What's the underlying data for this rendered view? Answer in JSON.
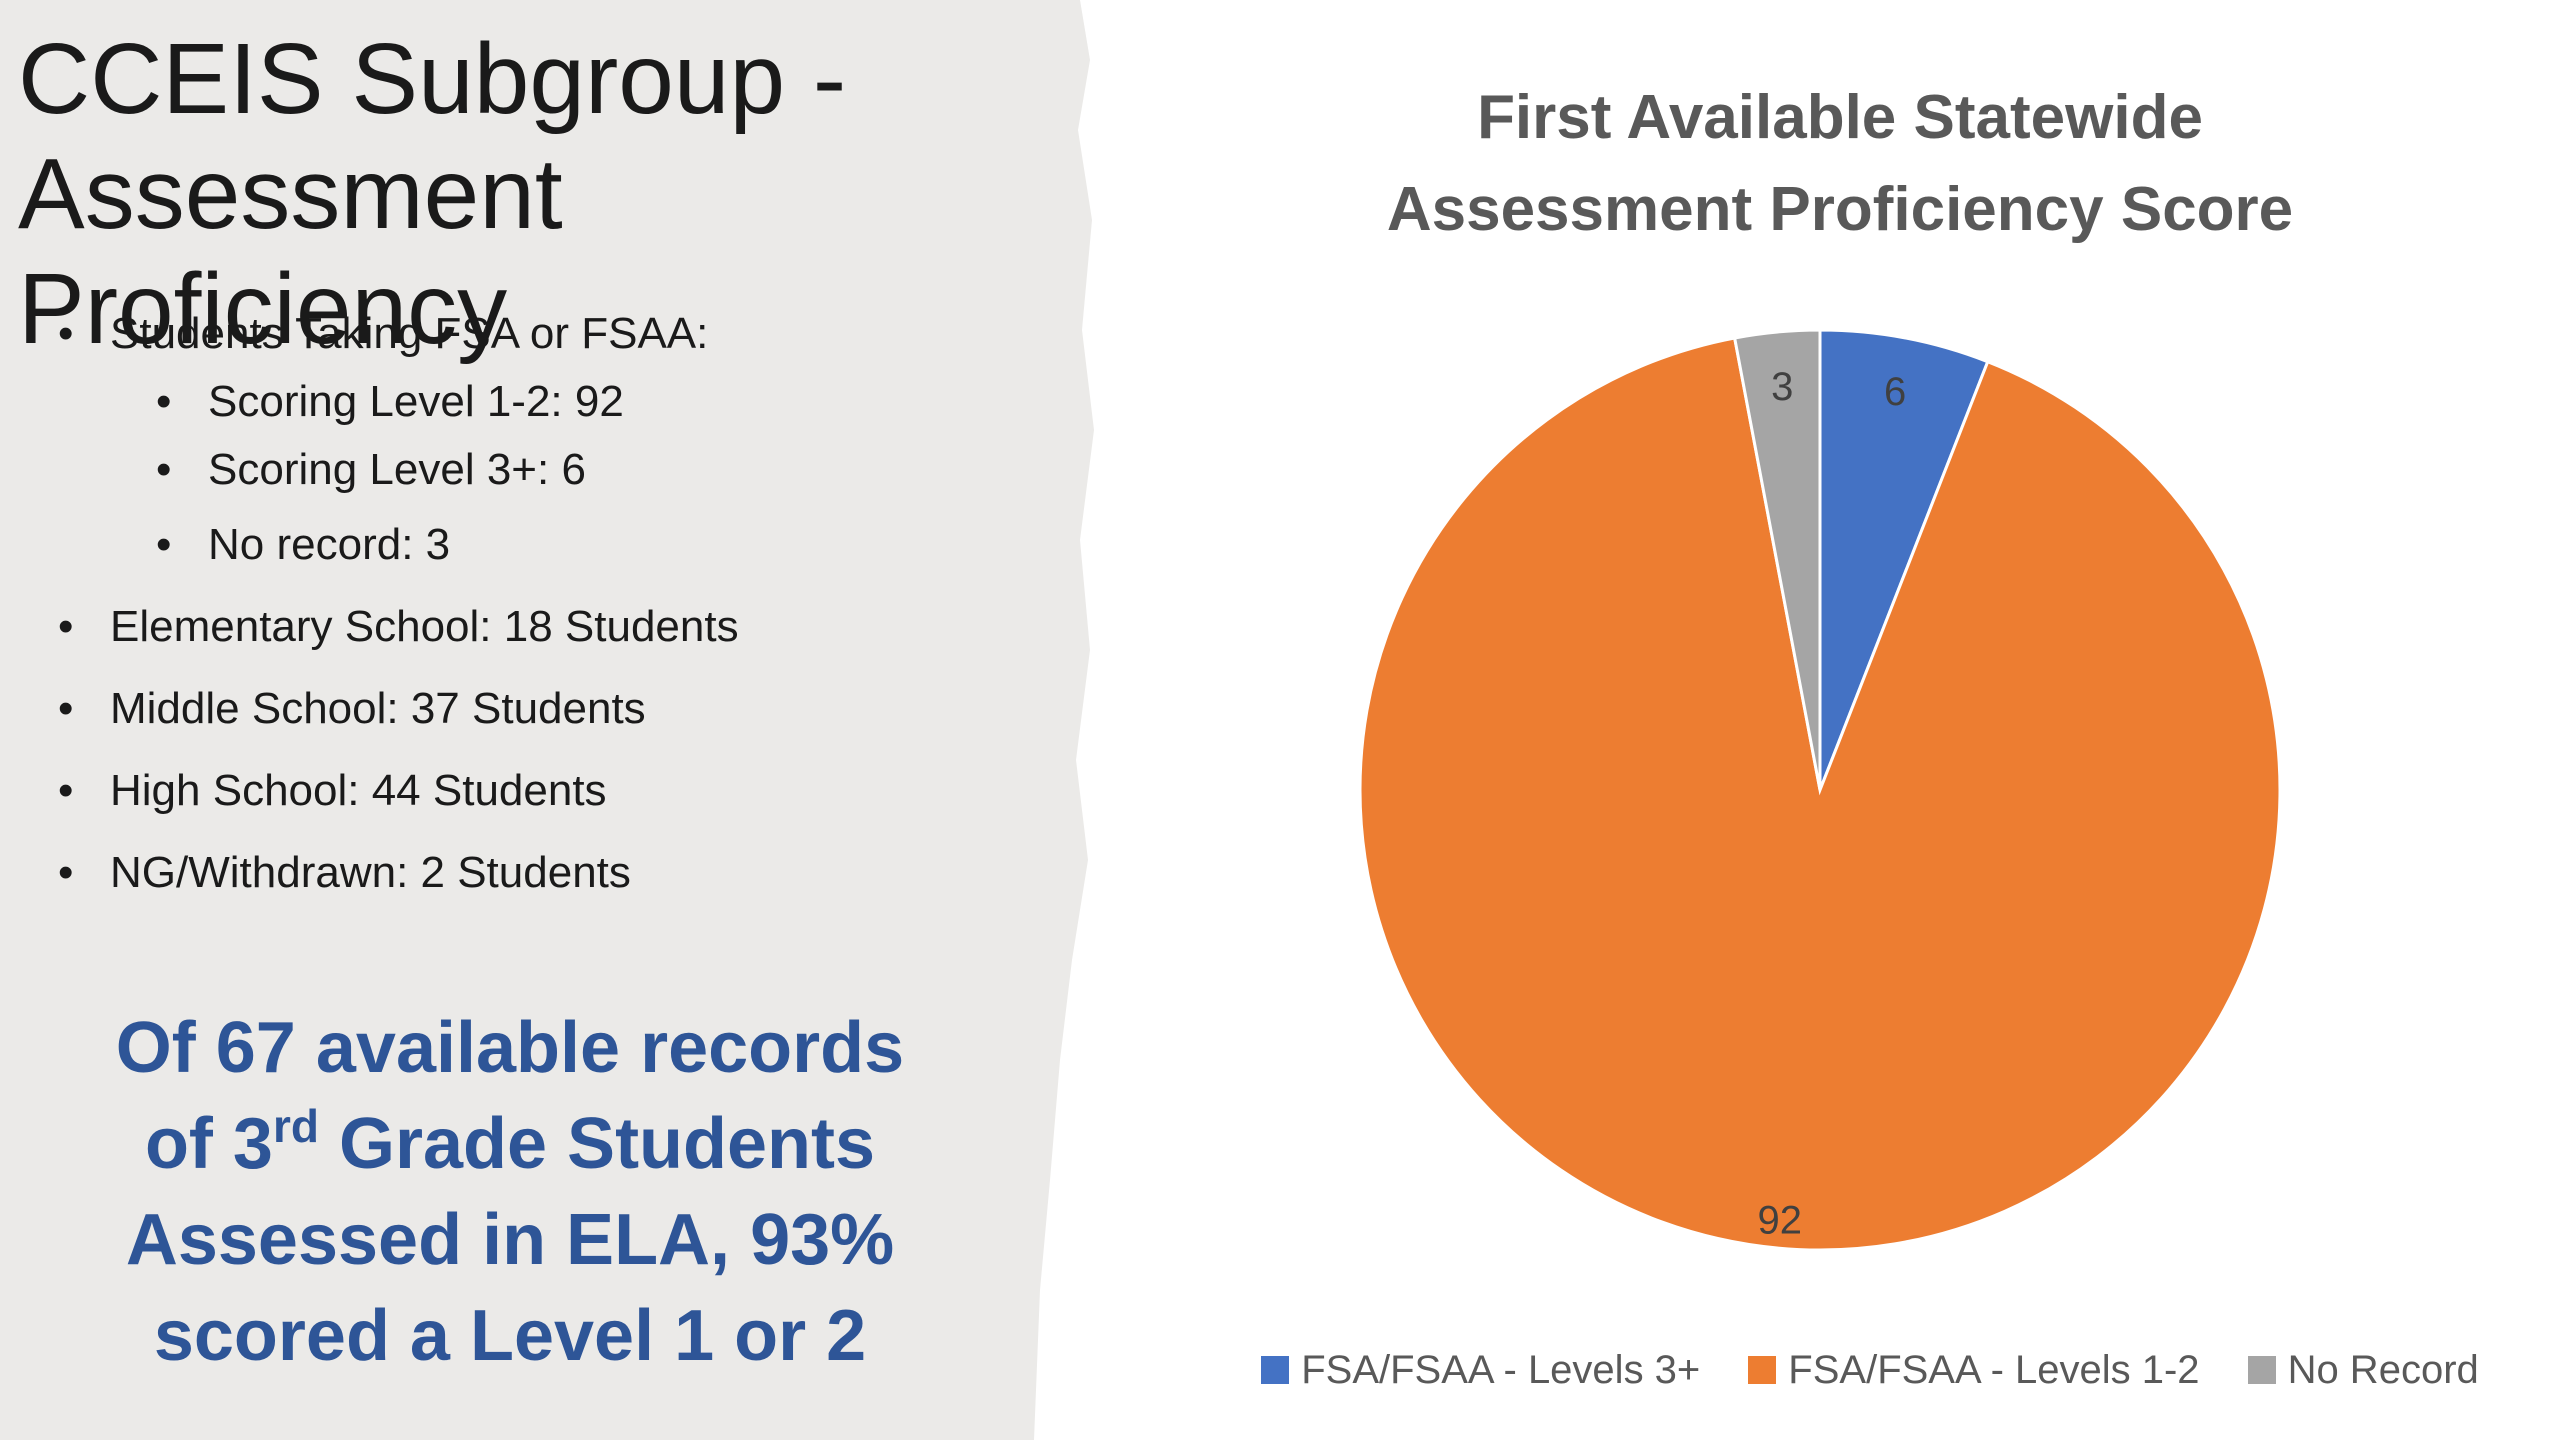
{
  "slide": {
    "title_lines": [
      "CCEIS Subgroup -",
      "Assessment Proficiency"
    ],
    "bullets": {
      "taking": "Students Taking FSA or FSAA:",
      "level_1_2": "Scoring Level 1-2: 92",
      "level_3": "Scoring Level 3+: 6",
      "no_record": "No record: 3",
      "elementary": "Elementary School: 18 Students",
      "middle": "Middle School: 37 Students",
      "high": "High School: 44 Students",
      "withdrawn": "NG/Withdrawn: 2 Students"
    },
    "callout": {
      "line1": "Of 67 available records",
      "line2_pre": "of 3",
      "line2_sup": "rd",
      "line2_post": " Grade Students",
      "line3": "Assessed in ELA, 93%",
      "line4": "scored a Level 1 or 2"
    }
  },
  "chart_data": {
    "type": "pie",
    "title_lines": [
      "First Available Statewide",
      "Assessment Proficiency Score"
    ],
    "labels": [
      "FSA/FSAA - Levels 3+",
      "FSA/FSAA - Levels 1-2",
      "No Record"
    ],
    "values": [
      6,
      92,
      3
    ],
    "colors": [
      "#4472c4",
      "#ed7d31",
      "#a5a5a5"
    ],
    "start_angle": "12 o'clock, clockwise",
    "legend_position": "bottom"
  }
}
